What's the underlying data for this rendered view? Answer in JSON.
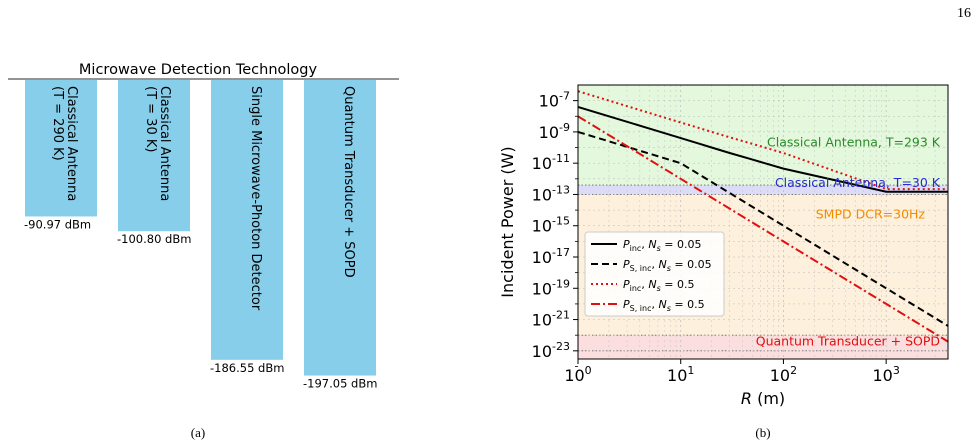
{
  "page_number": "16",
  "caption_a": "(a)",
  "caption_b": "(b)",
  "chart_data": [
    {
      "type": "bar",
      "title": "Microwave Detection Technology",
      "orientation": "inverted-vertical",
      "color": "#87ceeb",
      "categories": [
        "Classical Antenna (T = 290 K)",
        "Classical Antenna (T = 30 K)",
        "Single Microwave-Photon Detector",
        "Quantum Transducer + SOPD"
      ],
      "labels_line1": [
        "Classical Antenna",
        "Classical Antenna",
        "Single Microwave-Photon Detector",
        "Quantum Transducer + SOPD"
      ],
      "labels_line2": [
        "(T = 290 K)",
        "(T = 30 K)",
        "",
        ""
      ],
      "values": [
        -90.97,
        -100.8,
        -186.55,
        -197.05
      ],
      "value_labels": [
        "-90.97 dBm",
        "-100.80 dBm",
        "-186.55 dBm",
        "-197.05 dBm"
      ]
    },
    {
      "type": "line",
      "xlabel": "R (m)",
      "ylabel": "Incident Power (W)",
      "xscale": "log",
      "yscale": "log",
      "xlim": [
        1,
        4000
      ],
      "ylim": [
        3e-24,
        1e-06
      ],
      "grid": true,
      "xticks": [
        "10^0",
        "10^1",
        "10^2",
        "10^3"
      ],
      "yticks": [
        "10^-7",
        "10^-9",
        "10^-11",
        "10^-13",
        "10^-15",
        "10^-17",
        "10^-19",
        "10^-21",
        "10^-23"
      ],
      "regions": [
        {
          "label": "Classical Antenna, T=293 K",
          "from": 4e-13,
          "to": 1e-06,
          "color": "#e3f8dc",
          "text_color": "#2a8a2a"
        },
        {
          "label": "Classical Antenna, T=30 K",
          "from": 1e-13,
          "to": 4e-13,
          "color": "#dcdcf8",
          "text_color": "#2a2ad0"
        },
        {
          "label": "SMPD DCR=30Hz",
          "from": 1e-22,
          "to": 1e-13,
          "color": "#fdf0dc",
          "text_color": "#f08c00"
        },
        {
          "label": "Quantum Transducer + SOPD",
          "from": 3e-24,
          "to": 1e-22,
          "color": "#fbdede",
          "text_color": "#e01010"
        }
      ],
      "series": [
        {
          "name": "P_inc, N_s = 0.05",
          "color": "#000000",
          "dash": "solid",
          "x": [
            1,
            2,
            5,
            10,
            15,
            20,
            30,
            50,
            100,
            1000,
            4000
          ],
          "y": [
            4e-08,
            1e-08,
            1.6e-09,
            4e-10,
            1.8e-10,
            1e-10,
            4.5e-11,
            1.7e-11,
            4.5e-12,
            1.5e-13,
            1.5e-13
          ]
        },
        {
          "name": "P_S,inc, N_s = 0.05",
          "color": "#000000",
          "dash": "dashed",
          "x": [
            1,
            10,
            100,
            1000,
            4000
          ],
          "y": [
            1e-09,
            1e-11,
            1e-15,
            1e-19,
            3.9e-22
          ]
        },
        {
          "name": "P_inc, N_s = 0.5",
          "color": "#e01010",
          "dash": "dotted",
          "x": [
            1,
            2,
            5,
            10,
            15,
            20,
            30,
            50,
            100,
            1000,
            4000
          ],
          "y": [
            4e-07,
            1e-07,
            1.6e-08,
            4e-09,
            1.8e-09,
            1e-09,
            4.5e-10,
            1.7e-10,
            4.5e-11,
            2.2e-13,
            2.2e-13
          ]
        },
        {
          "name": "P_S,inc, N_s = 0.5",
          "color": "#e01010",
          "dash": "dashdot",
          "x": [
            1,
            10,
            100,
            1000,
            4000
          ],
          "y": [
            1e-08,
            1e-12,
            1e-16,
            1e-20,
            3.9e-23
          ]
        }
      ],
      "legend": {
        "placement": "lower-left",
        "entries": [
          {
            "sym": "P",
            "sub": "inc",
            "tail": ", N",
            "tailsub": "s",
            "val": " = 0.05"
          },
          {
            "sym": "P",
            "sub": "S, inc",
            "tail": ", N",
            "tailsub": "s",
            "val": " = 0.05"
          },
          {
            "sym": "P",
            "sub": "inc",
            "tail": ", N",
            "tailsub": "s",
            "val": " = 0.5"
          },
          {
            "sym": "P",
            "sub": "S, inc",
            "tail": ", N",
            "tailsub": "s",
            "val": " = 0.5"
          }
        ]
      }
    }
  ]
}
